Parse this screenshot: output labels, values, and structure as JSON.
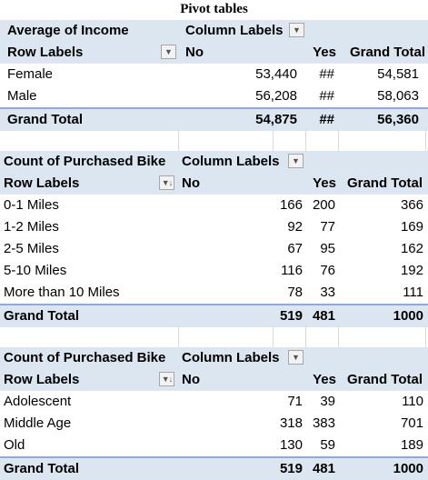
{
  "title": "Pivot tables",
  "pivot1": {
    "value_header": "Average of Income",
    "column_labels": "Column Labels",
    "row_labels": "Row Labels",
    "col_no": "No",
    "col_yes": "Yes",
    "col_grand": "Grand Total",
    "rows": [
      {
        "label": "Female",
        "no": "53,440",
        "yes": "##",
        "total": "54,581"
      },
      {
        "label": "Male",
        "no": "56,208",
        "yes": "##",
        "total": "58,063"
      }
    ],
    "grand_total": {
      "label": "Grand Total",
      "no": "54,875",
      "yes": "##",
      "total": "56,360"
    }
  },
  "pivot2": {
    "value_header": "Count of Purchased Bike",
    "column_labels": "Column Labels",
    "row_labels": "Row Labels",
    "col_no": "No",
    "col_yes": "Yes",
    "col_grand": "Grand Total",
    "rows": [
      {
        "label": "0-1 Miles",
        "no": "166",
        "yes": "200",
        "total": "366"
      },
      {
        "label": "1-2 Miles",
        "no": "92",
        "yes": "77",
        "total": "169"
      },
      {
        "label": "2-5 Miles",
        "no": "67",
        "yes": "95",
        "total": "162"
      },
      {
        "label": "5-10 Miles",
        "no": "116",
        "yes": "76",
        "total": "192"
      },
      {
        "label": "More than 10 Miles",
        "no": "78",
        "yes": "33",
        "total": "111"
      }
    ],
    "grand_total": {
      "label": "Grand Total",
      "no": "519",
      "yes": "481",
      "total": "1000"
    }
  },
  "pivot3": {
    "value_header": "Count of Purchased Bike",
    "column_labels": "Column Labels",
    "row_labels": "Row Labels",
    "col_no": "No",
    "col_yes": "Yes",
    "col_grand": "Grand Total",
    "rows": [
      {
        "label": "Adolescent",
        "no": "71",
        "yes": "39",
        "total": "110"
      },
      {
        "label": "Middle Age",
        "no": "318",
        "yes": "383",
        "total": "701"
      },
      {
        "label": "Old",
        "no": "130",
        "yes": "59",
        "total": "189"
      }
    ],
    "grand_total": {
      "label": "Grand Total",
      "no": "519",
      "yes": "481",
      "total": "1000"
    }
  },
  "icons": {
    "dropdown": "dropdown-arrow-icon",
    "filter_sort": "filter-sort-icon"
  },
  "colors": {
    "header_fill": "#dce6f1",
    "total_border": "#8ea9db"
  }
}
